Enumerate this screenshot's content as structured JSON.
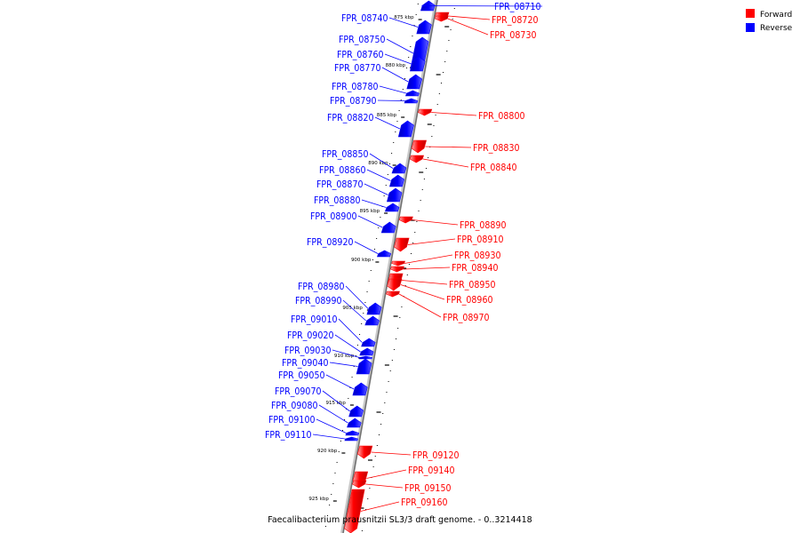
{
  "caption": "Faecalibacterium prausnitzii SL3/3 draft genome. - 0..3214418",
  "legend": [
    {
      "label": "Forward",
      "color": "#ff0000"
    },
    {
      "label": "Reverse",
      "color": "#0000ff"
    }
  ],
  "colors": {
    "forward": "#ff0000",
    "reverse": "#0000ff",
    "axis": "#888888"
  },
  "ticks": [
    {
      "label": "875 kbp",
      "kbp": 875
    },
    {
      "label": "880 kbp",
      "kbp": 880
    },
    {
      "label": "885 kbp",
      "kbp": 885
    },
    {
      "label": "890 kbp",
      "kbp": 890
    },
    {
      "label": "895 kbp",
      "kbp": 895
    },
    {
      "label": "900 kbp",
      "kbp": 900
    },
    {
      "label": "905 kbp",
      "kbp": 905
    },
    {
      "label": "910 kbp",
      "kbp": 910
    },
    {
      "label": "915 kbp",
      "kbp": 915
    },
    {
      "label": "920 kbp",
      "kbp": 920
    },
    {
      "label": "925 kbp",
      "kbp": 925
    }
  ],
  "genes": [
    {
      "name": "FPR_08710",
      "strand": "reverse"
    },
    {
      "name": "FPR_08720",
      "strand": "forward"
    },
    {
      "name": "FPR_08730",
      "strand": "forward"
    },
    {
      "name": "FPR_08740",
      "strand": "reverse"
    },
    {
      "name": "FPR_08750",
      "strand": "reverse"
    },
    {
      "name": "FPR_08760",
      "strand": "reverse"
    },
    {
      "name": "FPR_08770",
      "strand": "reverse"
    },
    {
      "name": "FPR_08780",
      "strand": "reverse"
    },
    {
      "name": "FPR_08790",
      "strand": "reverse"
    },
    {
      "name": "FPR_08800",
      "strand": "forward"
    },
    {
      "name": "FPR_08820",
      "strand": "reverse"
    },
    {
      "name": "FPR_08830",
      "strand": "forward"
    },
    {
      "name": "FPR_08840",
      "strand": "forward"
    },
    {
      "name": "FPR_08850",
      "strand": "reverse"
    },
    {
      "name": "FPR_08860",
      "strand": "reverse"
    },
    {
      "name": "FPR_08870",
      "strand": "reverse"
    },
    {
      "name": "FPR_08880",
      "strand": "reverse"
    },
    {
      "name": "FPR_08890",
      "strand": "forward"
    },
    {
      "name": "FPR_08900",
      "strand": "reverse"
    },
    {
      "name": "FPR_08910",
      "strand": "forward"
    },
    {
      "name": "FPR_08920",
      "strand": "reverse"
    },
    {
      "name": "FPR_08930",
      "strand": "forward"
    },
    {
      "name": "FPR_08940",
      "strand": "forward"
    },
    {
      "name": "FPR_08950",
      "strand": "forward"
    },
    {
      "name": "FPR_08960",
      "strand": "forward"
    },
    {
      "name": "FPR_08970",
      "strand": "forward"
    },
    {
      "name": "FPR_08980",
      "strand": "reverse"
    },
    {
      "name": "FPR_08990",
      "strand": "reverse"
    },
    {
      "name": "FPR_09010",
      "strand": "reverse"
    },
    {
      "name": "FPR_09020",
      "strand": "reverse"
    },
    {
      "name": "FPR_09030",
      "strand": "reverse"
    },
    {
      "name": "FPR_09040",
      "strand": "reverse"
    },
    {
      "name": "FPR_09050",
      "strand": "reverse"
    },
    {
      "name": "FPR_09070",
      "strand": "reverse"
    },
    {
      "name": "FPR_09080",
      "strand": "reverse"
    },
    {
      "name": "FPR_09100",
      "strand": "reverse"
    },
    {
      "name": "FPR_09110",
      "strand": "reverse"
    },
    {
      "name": "FPR_09120",
      "strand": "forward"
    },
    {
      "name": "FPR_09140",
      "strand": "forward"
    },
    {
      "name": "FPR_09150",
      "strand": "forward"
    },
    {
      "name": "FPR_09160",
      "strand": "forward"
    }
  ]
}
